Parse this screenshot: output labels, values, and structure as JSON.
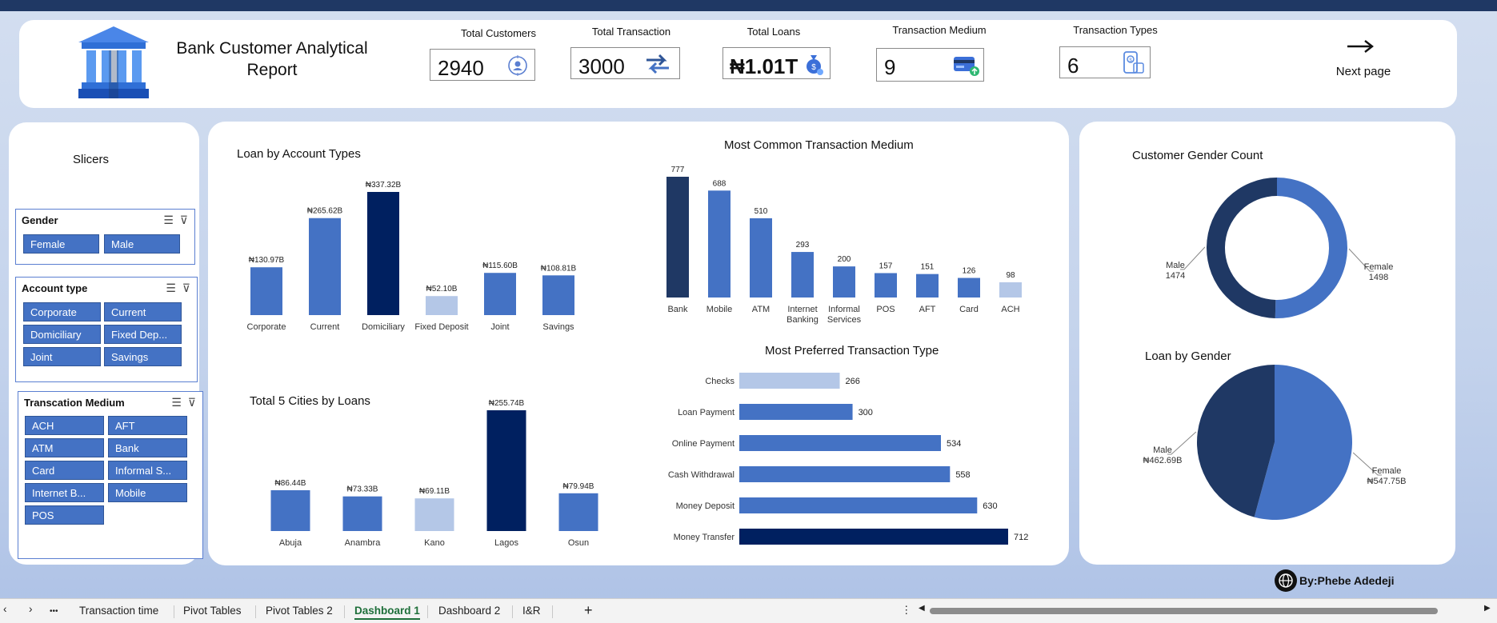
{
  "header": {
    "title_line1": "Bank Customer Analytical",
    "title_line2": "Report",
    "next_page": "Next page"
  },
  "kpis": [
    {
      "title": "Total Customers",
      "value": "2940",
      "icon": "target-person-icon"
    },
    {
      "title": "Total Transaction",
      "value": "3000",
      "icon": "transfer-arrows-icon"
    },
    {
      "title": "Total Loans",
      "value": "₦1.01T",
      "icon": "money-bag-icon"
    },
    {
      "title": "Transaction Medium",
      "value": "9",
      "icon": "card-payment-icon"
    },
    {
      "title": "Transaction Types",
      "value": "6",
      "icon": "mobile-payment-icon"
    }
  ],
  "slicers": {
    "heading": "Slicers",
    "gender": {
      "title": "Gender",
      "items": [
        "Female",
        "Male"
      ]
    },
    "account_type": {
      "title": "Account type",
      "items": [
        "Corporate",
        "Current",
        "Domiciliary",
        "Fixed Dep...",
        "Joint",
        "Savings"
      ]
    },
    "medium": {
      "title": "Transcation  Medium",
      "items": [
        "ACH",
        "AFT",
        "ATM",
        "Bank",
        "Card",
        "Informal S...",
        "Internet B...",
        "Mobile",
        "POS"
      ]
    }
  },
  "colors": {
    "navy": "#002060",
    "dark": "#1f3864",
    "mid": "#4472c4",
    "light": "#b4c7e7",
    "panel": "#ffffff"
  },
  "chart_data": [
    {
      "type": "bar",
      "title": "Loan by Account Types",
      "categories": [
        "Corporate",
        "Current",
        "Domiciliary",
        "Fixed Deposit",
        "Joint",
        "Savings"
      ],
      "values": [
        130.97,
        265.62,
        337.32,
        52.1,
        115.6,
        108.81
      ],
      "labels": [
        "₦130.97B",
        "₦265.62B",
        "₦337.32B",
        "₦52.10B",
        "₦115.60B",
        "₦108.81B"
      ],
      "highlight": [
        "mid",
        "mid",
        "navy",
        "light",
        "mid",
        "mid"
      ]
    },
    {
      "type": "bar",
      "title": "Most Common Transaction  Medium",
      "categories": [
        "Bank",
        "Mobile",
        "ATM",
        "Internet Banking",
        "Informal Services",
        "POS",
        "AFT",
        "Card",
        "ACH"
      ],
      "values": [
        777,
        688,
        510,
        293,
        200,
        157,
        151,
        126,
        98
      ],
      "highlight": [
        "dark",
        "mid",
        "mid",
        "mid",
        "mid",
        "mid",
        "mid",
        "mid",
        "light"
      ]
    },
    {
      "type": "bar",
      "title": "Total 5 Cities by Loans",
      "categories": [
        "Abuja",
        "Anambra",
        "Kano",
        "Lagos",
        "Osun"
      ],
      "values": [
        86.44,
        73.33,
        69.11,
        255.74,
        79.94
      ],
      "labels": [
        "₦86.44B",
        "₦73.33B",
        "₦69.11B",
        "₦255.74B",
        "₦79.94B"
      ],
      "highlight": [
        "mid",
        "mid",
        "light",
        "navy",
        "mid"
      ]
    },
    {
      "type": "bar",
      "orientation": "horizontal",
      "title": "Most Preferred Transaction Type",
      "categories": [
        "Checks",
        "Loan Payment",
        "Online Payment",
        "Cash Withdrawal",
        "Money Deposit",
        "Money Transfer"
      ],
      "values": [
        266,
        300,
        534,
        558,
        630,
        712
      ],
      "highlight": [
        "light",
        "mid",
        "mid",
        "mid",
        "mid",
        "navy"
      ]
    },
    {
      "type": "pie",
      "variant": "donut",
      "title": "Customer Gender Count",
      "categories": [
        "Female",
        "Male"
      ],
      "values": [
        1498,
        1474
      ],
      "labels": [
        "1498",
        "1474"
      ]
    },
    {
      "type": "pie",
      "title": "Loan by Gender",
      "categories": [
        "Female",
        "Male"
      ],
      "values": [
        547.75,
        462.69
      ],
      "labels": [
        "₦547.75B",
        "₦462.69B"
      ]
    }
  ],
  "footer": {
    "credit": "By:Phebe Adedeji"
  },
  "tabs": {
    "items": [
      "Transaction time",
      "Pivot Tables",
      "Pivot Tables 2",
      "Dashboard 1",
      "Dashboard 2",
      "I&R"
    ],
    "active": "Dashboard 1",
    "more": "•••",
    "add": "+"
  }
}
